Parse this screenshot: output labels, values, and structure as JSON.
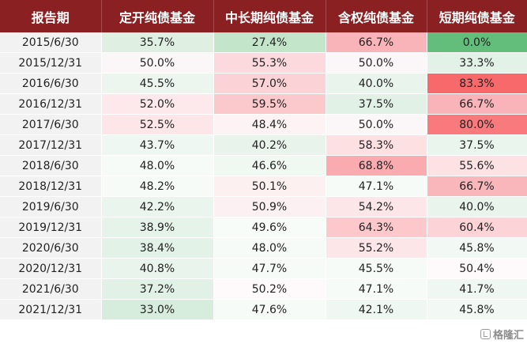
{
  "table": {
    "headers": [
      "报告期",
      "定开纯债基金",
      "中长期纯债基金",
      "含权纯债基金",
      "短期纯债基金"
    ],
    "rows": [
      {
        "period": "2015/6/30",
        "values": [
          "35.7%",
          "27.4%",
          "66.7%",
          "0.0%"
        ]
      },
      {
        "period": "2015/12/31",
        "values": [
          "50.0%",
          "55.3%",
          "50.0%",
          "33.3%"
        ]
      },
      {
        "period": "2016/6/30",
        "values": [
          "45.5%",
          "57.0%",
          "40.0%",
          "83.3%"
        ]
      },
      {
        "period": "2016/12/31",
        "values": [
          "52.0%",
          "59.5%",
          "37.5%",
          "66.7%"
        ]
      },
      {
        "period": "2017/6/30",
        "values": [
          "52.5%",
          "48.4%",
          "50.0%",
          "80.0%"
        ]
      },
      {
        "period": "2017/12/31",
        "values": [
          "43.7%",
          "40.2%",
          "58.3%",
          "37.5%"
        ]
      },
      {
        "period": "2018/6/30",
        "values": [
          "48.0%",
          "46.6%",
          "68.8%",
          "55.6%"
        ]
      },
      {
        "period": "2018/12/31",
        "values": [
          "48.2%",
          "50.1%",
          "47.1%",
          "66.7%"
        ]
      },
      {
        "period": "2019/6/30",
        "values": [
          "42.2%",
          "50.9%",
          "54.2%",
          "40.0%"
        ]
      },
      {
        "period": "2019/12/31",
        "values": [
          "38.9%",
          "49.6%",
          "64.3%",
          "60.4%"
        ]
      },
      {
        "period": "2020/6/30",
        "values": [
          "38.4%",
          "48.0%",
          "55.2%",
          "45.8%"
        ]
      },
      {
        "period": "2020/12/31",
        "values": [
          "40.8%",
          "47.7%",
          "45.5%",
          "50.4%"
        ]
      },
      {
        "period": "2021/6/30",
        "values": [
          "37.2%",
          "50.2%",
          "47.1%",
          "41.7%"
        ]
      },
      {
        "period": "2021/12/31",
        "values": [
          "33.0%",
          "47.6%",
          "42.1%",
          "45.8%"
        ]
      }
    ]
  },
  "cell_colors": [
    [
      "#dff0e3",
      "#c3e6cb",
      "#f8b4b8",
      "#63be7b"
    ],
    [
      "#fbf6f7",
      "#fcd9dc",
      "#fbf6f7",
      "#e3f2e7"
    ],
    [
      "#ecf6ef",
      "#fbd2d5",
      "#e8f4ec",
      "#f8696b"
    ],
    [
      "#fde9eb",
      "#fbc8cc",
      "#e2f1e6",
      "#f8b4b8"
    ],
    [
      "#fde6e8",
      "#fef3f4",
      "#fbf6f7",
      "#f87a7c"
    ],
    [
      "#eef7f1",
      "#e7f3eb",
      "#fde0e2",
      "#eaf5ed"
    ],
    [
      "#f7fbf8",
      "#f0f8f2",
      "#f9abaf",
      "#fde2e4"
    ],
    [
      "#f7fbf8",
      "#fdf0f1",
      "#f7fbf8",
      "#f9b7bb"
    ],
    [
      "#eaf5ed",
      "#fcf0f2",
      "#fde6e8",
      "#e8f4ec"
    ],
    [
      "#e5f3e9",
      "#f8fcf9",
      "#fcc8cc",
      "#fcd3d6"
    ],
    [
      "#e3f2e7",
      "#f7fbf8",
      "#fde6e8",
      "#f2f9f4"
    ],
    [
      "#e9f4ec",
      "#f7fbf8",
      "#f7fbf8",
      "#fefafb"
    ],
    [
      "#e1f1e5",
      "#fefafb",
      "#f7fbf8",
      "#eef7f1"
    ],
    [
      "#d6ecdc",
      "#f7fbf8",
      "#eef7f1",
      "#f2f9f4"
    ]
  ],
  "watermark": {
    "text": "格隆汇"
  }
}
